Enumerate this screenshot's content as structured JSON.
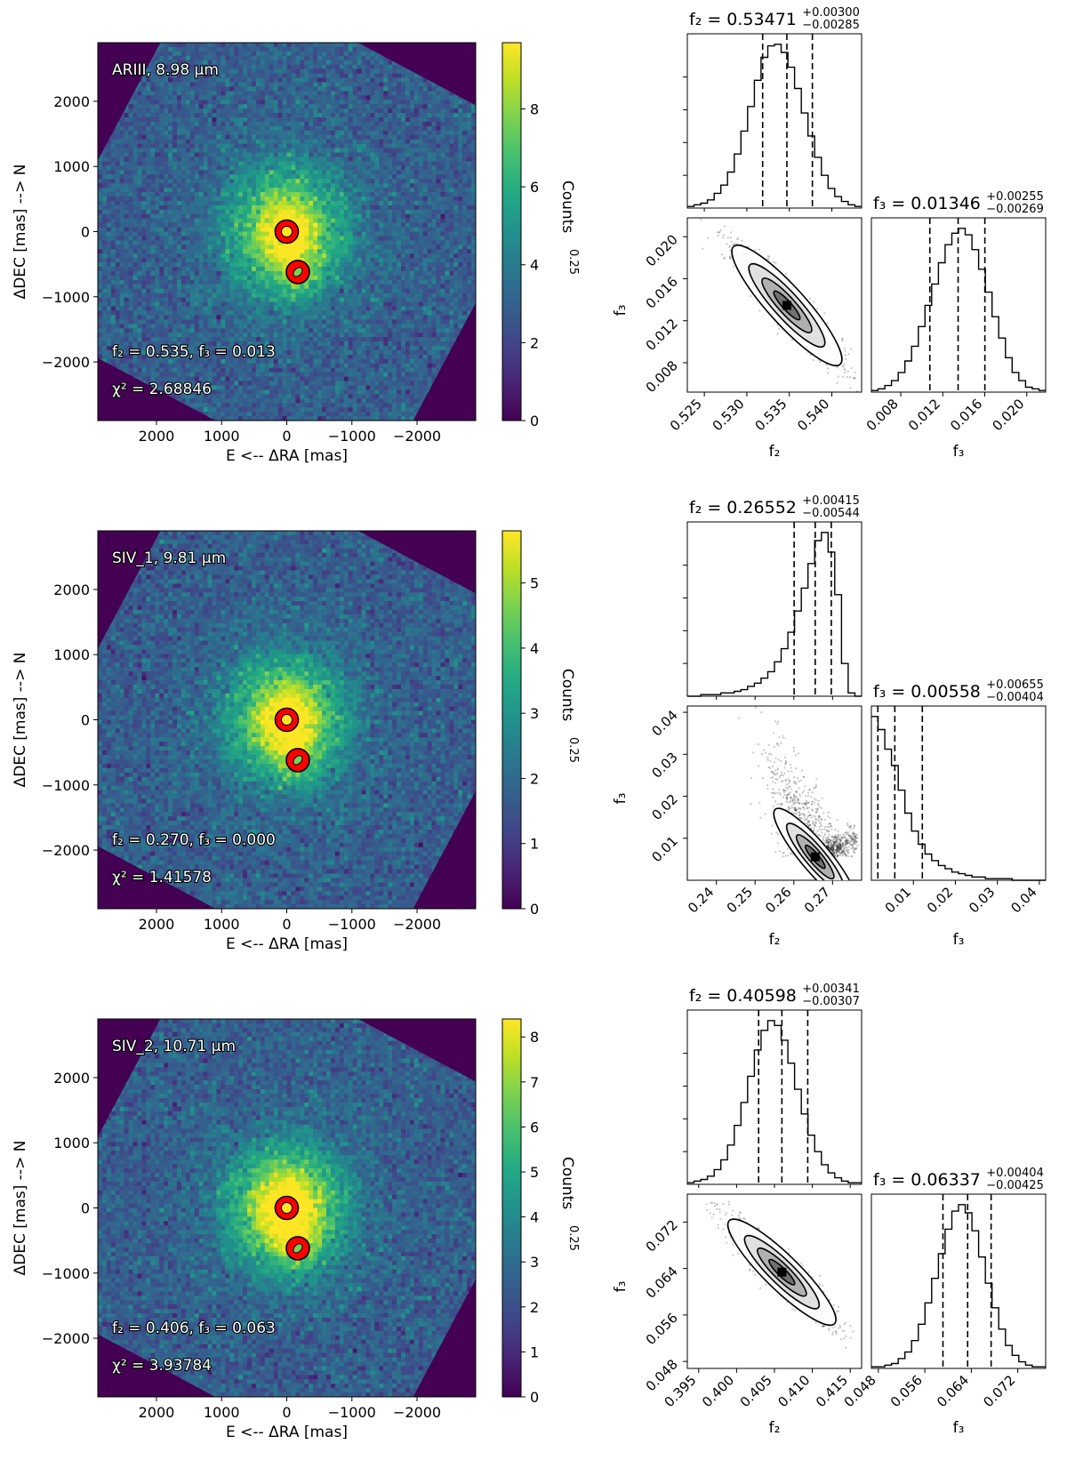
{
  "colors": {
    "viridis": [
      "#440154",
      "#482475",
      "#414487",
      "#355f8d",
      "#2a788e",
      "#21918c",
      "#22a884",
      "#44bf70",
      "#7ad151",
      "#bddf26",
      "#fde725"
    ],
    "marker_edge": "#ff0000",
    "marker_star": "#fde725",
    "marker_companion": "#7ad151"
  },
  "chart_data": [
    {
      "type": "heatmap",
      "band": "ARIII, 8.98 μm",
      "fit_label": "f₂ = 0.535, f₃ = 0.013",
      "chi2_label": "χ² = 2.68846",
      "f2": 0.535,
      "f3": 0.013,
      "chi2": 2.68846,
      "xlabel": "E <-- ΔRA [mas]",
      "ylabel": "ΔDEC [mas] --> N",
      "xlim": [
        2900,
        -2900
      ],
      "ylim": [
        -2900,
        2900
      ],
      "xticks": [
        2000,
        1000,
        0,
        -1000,
        -2000
      ],
      "xtick_labels": [
        "2000",
        "1000",
        "0",
        "−1000",
        "−2000"
      ],
      "yticks": [
        2000,
        1000,
        0,
        -1000,
        -2000
      ],
      "ytick_labels": [
        "2000",
        "1000",
        "0",
        "−1000",
        "−2000"
      ],
      "colorbar": {
        "label": "Counts⁰·²⁵",
        "label_main": "Counts",
        "label_sup": "0.25",
        "min": 0,
        "max": 9.7,
        "ticks": [
          0,
          2,
          4,
          6,
          8
        ],
        "tick_labels": [
          "0",
          "2",
          "4",
          "6",
          "8"
        ]
      },
      "sources": [
        {
          "name": "primary",
          "ra": 0,
          "dec": 0
        },
        {
          "name": "companion",
          "ra": -170,
          "dec": -620
        }
      ]
    },
    {
      "type": "heatmap",
      "band": "SIV_1, 9.81 μm",
      "fit_label": "f₂ = 0.270, f₃ = 0.000",
      "chi2_label": "χ² = 1.41578",
      "f2": 0.27,
      "f3": 0.0,
      "chi2": 1.41578,
      "xlabel": "E <-- ΔRA [mas]",
      "ylabel": "ΔDEC [mas] --> N",
      "xlim": [
        2900,
        -2900
      ],
      "ylim": [
        -2900,
        2900
      ],
      "xticks": [
        2000,
        1000,
        0,
        -1000,
        -2000
      ],
      "xtick_labels": [
        "2000",
        "1000",
        "0",
        "−1000",
        "−2000"
      ],
      "yticks": [
        2000,
        1000,
        0,
        -1000,
        -2000
      ],
      "ytick_labels": [
        "2000",
        "1000",
        "0",
        "−1000",
        "−2000"
      ],
      "colorbar": {
        "label": "Counts⁰·²⁵",
        "label_main": "Counts",
        "label_sup": "0.25",
        "min": 0,
        "max": 5.8,
        "ticks": [
          0,
          1,
          2,
          3,
          4,
          5
        ],
        "tick_labels": [
          "0",
          "1",
          "2",
          "3",
          "4",
          "5"
        ]
      },
      "sources": [
        {
          "name": "primary",
          "ra": 0,
          "dec": 0
        },
        {
          "name": "companion",
          "ra": -170,
          "dec": -620
        }
      ]
    },
    {
      "type": "heatmap",
      "band": "SIV_2, 10.71 μm",
      "fit_label": "f₂ = 0.406, f₃ = 0.063",
      "chi2_label": "χ² = 3.93784",
      "f2": 0.406,
      "f3": 0.063,
      "chi2": 3.93784,
      "xlabel": "E <-- ΔRA [mas]",
      "ylabel": "ΔDEC [mas] --> N",
      "xlim": [
        2900,
        -2900
      ],
      "ylim": [
        -2900,
        2900
      ],
      "xticks": [
        2000,
        1000,
        0,
        -1000,
        -2000
      ],
      "xtick_labels": [
        "2000",
        "1000",
        "0",
        "−1000",
        "−2000"
      ],
      "yticks": [
        2000,
        1000,
        0,
        -1000,
        -2000
      ],
      "ytick_labels": [
        "2000",
        "1000",
        "0",
        "−1000",
        "−2000"
      ],
      "colorbar": {
        "label": "Counts⁰·²⁵",
        "label_main": "Counts",
        "label_sup": "0.25",
        "min": 0,
        "max": 8.4,
        "ticks": [
          0,
          1,
          2,
          3,
          4,
          5,
          6,
          7,
          8
        ],
        "tick_labels": [
          "0",
          "1",
          "2",
          "3",
          "4",
          "5",
          "6",
          "7",
          "8"
        ]
      },
      "sources": [
        {
          "name": "primary",
          "ra": 0,
          "dec": 0
        },
        {
          "name": "companion",
          "ra": -170,
          "dec": -620
        }
      ]
    },
    {
      "type": "corner",
      "f2": {
        "label": "f₂",
        "median": 0.53471,
        "plus": 0.003,
        "minus": 0.00285,
        "title": "f₂ = 0.53471",
        "sup": "+0.00300",
        "sub": "−0.00285",
        "range": [
          0.523,
          0.5435
        ],
        "ticks": [
          0.525,
          0.53,
          0.535,
          0.54
        ],
        "tick_labels": [
          "0.525",
          "0.530",
          "0.535",
          "0.540"
        ]
      },
      "f3": {
        "label": "f₃",
        "median": 0.01346,
        "plus": 0.00255,
        "minus": 0.00269,
        "title": "f₃ = 0.01346",
        "sup": "+0.00255",
        "sub": "−0.00269",
        "range": [
          0.0052,
          0.0218
        ],
        "ticks": [
          0.008,
          0.012,
          0.016,
          0.02
        ],
        "tick_labels": [
          "0.008",
          "0.012",
          "0.016",
          "0.020"
        ],
        "scatter_ticks": [
          0.008,
          0.012,
          0.016,
          0.02
        ],
        "scatter_tick_labels": [
          "0.008",
          "0.012",
          "0.016",
          "0.020"
        ]
      },
      "hist_f2": {
        "edges": [
          0.523,
          0.5435
        ],
        "counts": [
          1,
          2,
          3,
          5,
          9,
          14,
          22,
          33,
          47,
          62,
          78,
          92,
          99,
          100,
          95,
          86,
          73,
          58,
          44,
          31,
          20,
          12,
          7,
          4,
          2,
          1
        ]
      },
      "hist_f3": {
        "edges": [
          0.0052,
          0.0218
        ],
        "counts": [
          1,
          2,
          4,
          7,
          12,
          19,
          28,
          40,
          53,
          66,
          79,
          90,
          97,
          100,
          96,
          87,
          75,
          61,
          46,
          33,
          21,
          12,
          7,
          3,
          2,
          1
        ]
      },
      "scatter": {
        "corr": -0.93,
        "tail": 0
      }
    },
    {
      "type": "corner",
      "f2": {
        "label": "f₂",
        "median": 0.26552,
        "plus": 0.00415,
        "minus": 0.00544,
        "title": "f₂ = 0.26552",
        "sup": "+0.00415",
        "sub": "−0.00544",
        "range": [
          0.2325,
          0.2775
        ],
        "ticks": [
          0.24,
          0.25,
          0.26,
          0.27
        ],
        "tick_labels": [
          "0.24",
          "0.25",
          "0.26",
          "0.27"
        ]
      },
      "f3": {
        "label": "f₃",
        "median": 0.00558,
        "plus": 0.00655,
        "minus": 0.00404,
        "title": "f₃ = 0.00558",
        "sup": "+0.00655",
        "sub": "−0.00404",
        "range": [
          0.0,
          0.0415
        ],
        "ticks": [
          0.01,
          0.02,
          0.03,
          0.04
        ],
        "tick_labels": [
          "0.01",
          "0.02",
          "0.03",
          "0.04"
        ],
        "scatter_ticks": [
          0.01,
          0.02,
          0.03,
          0.04
        ],
        "scatter_tick_labels": [
          "0.01",
          "0.02",
          "0.03",
          "0.04"
        ]
      },
      "hist_f2": {
        "edges": [
          0.2325,
          0.2775
        ],
        "counts": [
          0,
          0,
          1,
          1,
          1,
          2,
          2,
          3,
          4,
          6,
          8,
          11,
          15,
          21,
          29,
          39,
          52,
          66,
          81,
          95,
          100,
          88,
          62,
          20,
          2,
          0
        ]
      },
      "hist_f3": {
        "edges": [
          0.0,
          0.0415
        ],
        "counts": [
          100,
          92,
          80,
          70,
          55,
          41,
          30,
          22,
          16,
          12,
          9,
          7,
          5,
          4,
          3,
          2,
          2,
          1,
          1,
          1,
          1,
          0,
          0,
          0,
          0,
          0
        ]
      },
      "scatter": {
        "corr": -0.8,
        "tail": 1
      }
    },
    {
      "type": "corner",
      "f2": {
        "label": "f₂",
        "median": 0.40598,
        "plus": 0.00341,
        "minus": 0.00307,
        "title": "f₂ = 0.40598",
        "sup": "+0.00341",
        "sub": "−0.00307",
        "range": [
          0.3935,
          0.4165
        ],
        "ticks": [
          0.395,
          0.4,
          0.405,
          0.41,
          0.415
        ],
        "tick_labels": [
          "0.395",
          "0.400",
          "0.405",
          "0.410",
          "0.415"
        ]
      },
      "f3": {
        "label": "f₃",
        "median": 0.06337,
        "plus": 0.00404,
        "minus": 0.00425,
        "title": "f₃ = 0.06337",
        "sup": "+0.00404",
        "sub": "−0.00425",
        "range": [
          0.0468,
          0.0768
        ],
        "ticks": [
          0.048,
          0.056,
          0.064,
          0.072
        ],
        "tick_labels": [
          "0.048",
          "0.056",
          "0.064",
          "0.072"
        ],
        "scatter_ticks": [
          0.048,
          0.056,
          0.064,
          0.072
        ],
        "scatter_tick_labels": [
          "0.048",
          "0.056",
          "0.064",
          "0.072"
        ]
      },
      "hist_f2": {
        "edges": [
          0.3935,
          0.4165
        ],
        "counts": [
          1,
          2,
          3,
          5,
          9,
          15,
          24,
          36,
          50,
          66,
          82,
          94,
          100,
          97,
          88,
          74,
          58,
          43,
          30,
          20,
          12,
          7,
          4,
          2,
          1,
          1
        ]
      },
      "hist_f3": {
        "edges": [
          0.0468,
          0.0768
        ],
        "counts": [
          1,
          1,
          2,
          3,
          6,
          10,
          17,
          27,
          40,
          55,
          70,
          85,
          96,
          100,
          95,
          84,
          68,
          52,
          37,
          24,
          14,
          8,
          4,
          2,
          1,
          1
        ]
      },
      "scatter": {
        "corr": -0.92,
        "tail": 0
      }
    }
  ]
}
